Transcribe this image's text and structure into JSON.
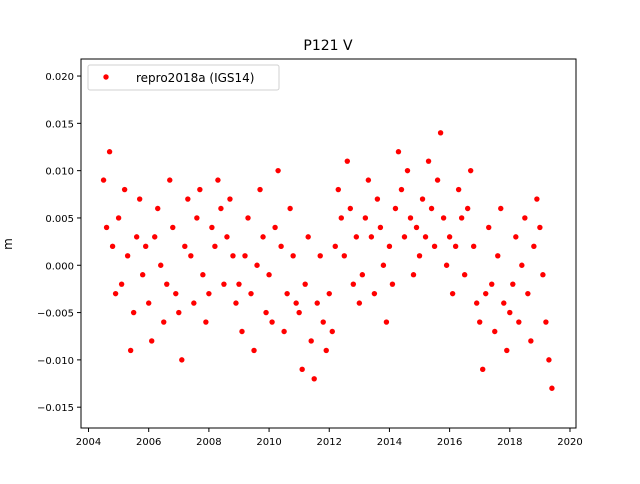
{
  "chart_data": {
    "type": "scatter",
    "title": "P121 V",
    "xlabel": "",
    "ylabel": "m",
    "xlim": [
      2003.75,
      2020.2
    ],
    "ylim": [
      -0.0172,
      0.0218
    ],
    "xticks": [
      "2004",
      "2006",
      "2008",
      "2010",
      "2012",
      "2014",
      "2016",
      "2018",
      "2020"
    ],
    "yticks": [
      "0.020",
      "0.015",
      "0.010",
      "0.005",
      "0.000",
      "−0.005",
      "−0.010",
      "−0.015"
    ],
    "grid": false,
    "legend": {
      "placement": "top-left"
    },
    "series": [
      {
        "name": "repro2018a (IGS14)",
        "color": "#ff0000",
        "marker": "dot",
        "x": [
          2004.5,
          2004.6,
          2004.7,
          2004.8,
          2004.9,
          2005.0,
          2005.1,
          2005.2,
          2005.3,
          2005.4,
          2005.5,
          2005.6,
          2005.7,
          2005.8,
          2005.9,
          2006.0,
          2006.1,
          2006.2,
          2006.3,
          2006.4,
          2006.5,
          2006.6,
          2006.7,
          2006.8,
          2006.9,
          2007.0,
          2007.1,
          2007.2,
          2007.3,
          2007.4,
          2007.5,
          2007.6,
          2007.7,
          2007.8,
          2007.9,
          2008.0,
          2008.1,
          2008.2,
          2008.3,
          2008.4,
          2008.5,
          2008.6,
          2008.7,
          2008.8,
          2008.9,
          2009.0,
          2009.1,
          2009.2,
          2009.3,
          2009.4,
          2009.5,
          2009.6,
          2009.7,
          2009.8,
          2009.9,
          2010.0,
          2010.1,
          2010.2,
          2010.3,
          2010.4,
          2010.5,
          2010.6,
          2010.7,
          2010.8,
          2010.9,
          2011.0,
          2011.1,
          2011.2,
          2011.3,
          2011.4,
          2011.5,
          2011.6,
          2011.7,
          2011.8,
          2011.9,
          2012.0,
          2012.1,
          2012.2,
          2012.3,
          2012.4,
          2012.5,
          2012.6,
          2012.7,
          2012.8,
          2012.9,
          2013.0,
          2013.1,
          2013.2,
          2013.3,
          2013.4,
          2013.5,
          2013.6,
          2013.7,
          2013.8,
          2013.9,
          2014.0,
          2014.1,
          2014.2,
          2014.3,
          2014.4,
          2014.5,
          2014.6,
          2014.7,
          2014.8,
          2014.9,
          2015.0,
          2015.1,
          2015.2,
          2015.3,
          2015.4,
          2015.5,
          2015.6,
          2015.7,
          2015.8,
          2015.9,
          2016.0,
          2016.1,
          2016.2,
          2016.3,
          2016.4,
          2016.5,
          2016.6,
          2016.7,
          2016.8,
          2016.9,
          2017.0,
          2017.1,
          2017.2,
          2017.3,
          2017.4,
          2017.5,
          2017.6,
          2017.7,
          2017.8,
          2017.9,
          2018.0,
          2018.1,
          2018.2,
          2018.3,
          2018.4,
          2018.5,
          2018.6,
          2018.7,
          2018.8,
          2018.9,
          2019.0,
          2019.1,
          2019.2,
          2019.3,
          2019.4
        ],
        "y": [
          0.009,
          0.004,
          0.012,
          0.002,
          -0.003,
          0.005,
          -0.002,
          0.008,
          0.001,
          -0.009,
          -0.005,
          0.003,
          0.007,
          -0.001,
          0.002,
          -0.004,
          -0.008,
          0.003,
          0.006,
          0.0,
          -0.006,
          -0.002,
          0.009,
          0.004,
          -0.003,
          -0.005,
          -0.01,
          0.002,
          0.007,
          0.001,
          -0.004,
          0.005,
          0.008,
          -0.001,
          -0.006,
          -0.003,
          0.004,
          0.002,
          0.009,
          0.006,
          -0.002,
          0.003,
          0.007,
          0.001,
          -0.004,
          -0.002,
          -0.007,
          0.001,
          0.005,
          -0.003,
          -0.009,
          0.0,
          0.008,
          0.003,
          -0.005,
          -0.001,
          -0.006,
          0.004,
          0.01,
          0.002,
          -0.007,
          -0.003,
          0.006,
          0.001,
          -0.004,
          -0.005,
          -0.011,
          -0.002,
          0.003,
          -0.008,
          -0.012,
          -0.004,
          0.001,
          -0.006,
          -0.009,
          -0.003,
          -0.007,
          0.002,
          0.008,
          0.005,
          0.001,
          0.011,
          0.006,
          -0.002,
          0.003,
          -0.004,
          -0.001,
          0.005,
          0.009,
          0.003,
          -0.003,
          0.007,
          0.004,
          0.0,
          -0.006,
          0.002,
          -0.002,
          0.006,
          0.012,
          0.008,
          0.003,
          0.01,
          0.005,
          -0.001,
          0.004,
          0.001,
          0.007,
          0.003,
          0.011,
          0.006,
          0.002,
          0.009,
          0.014,
          0.005,
          0.0,
          0.003,
          -0.003,
          0.002,
          0.008,
          0.005,
          -0.001,
          0.006,
          0.01,
          0.002,
          -0.004,
          -0.006,
          -0.011,
          -0.003,
          0.004,
          -0.002,
          -0.007,
          0.001,
          0.006,
          -0.004,
          -0.009,
          -0.005,
          -0.002,
          0.003,
          -0.006,
          0.0,
          0.005,
          -0.003,
          -0.008,
          0.002,
          0.007,
          0.004,
          -0.001,
          -0.006,
          -0.01,
          -0.013
        ]
      }
    ]
  }
}
